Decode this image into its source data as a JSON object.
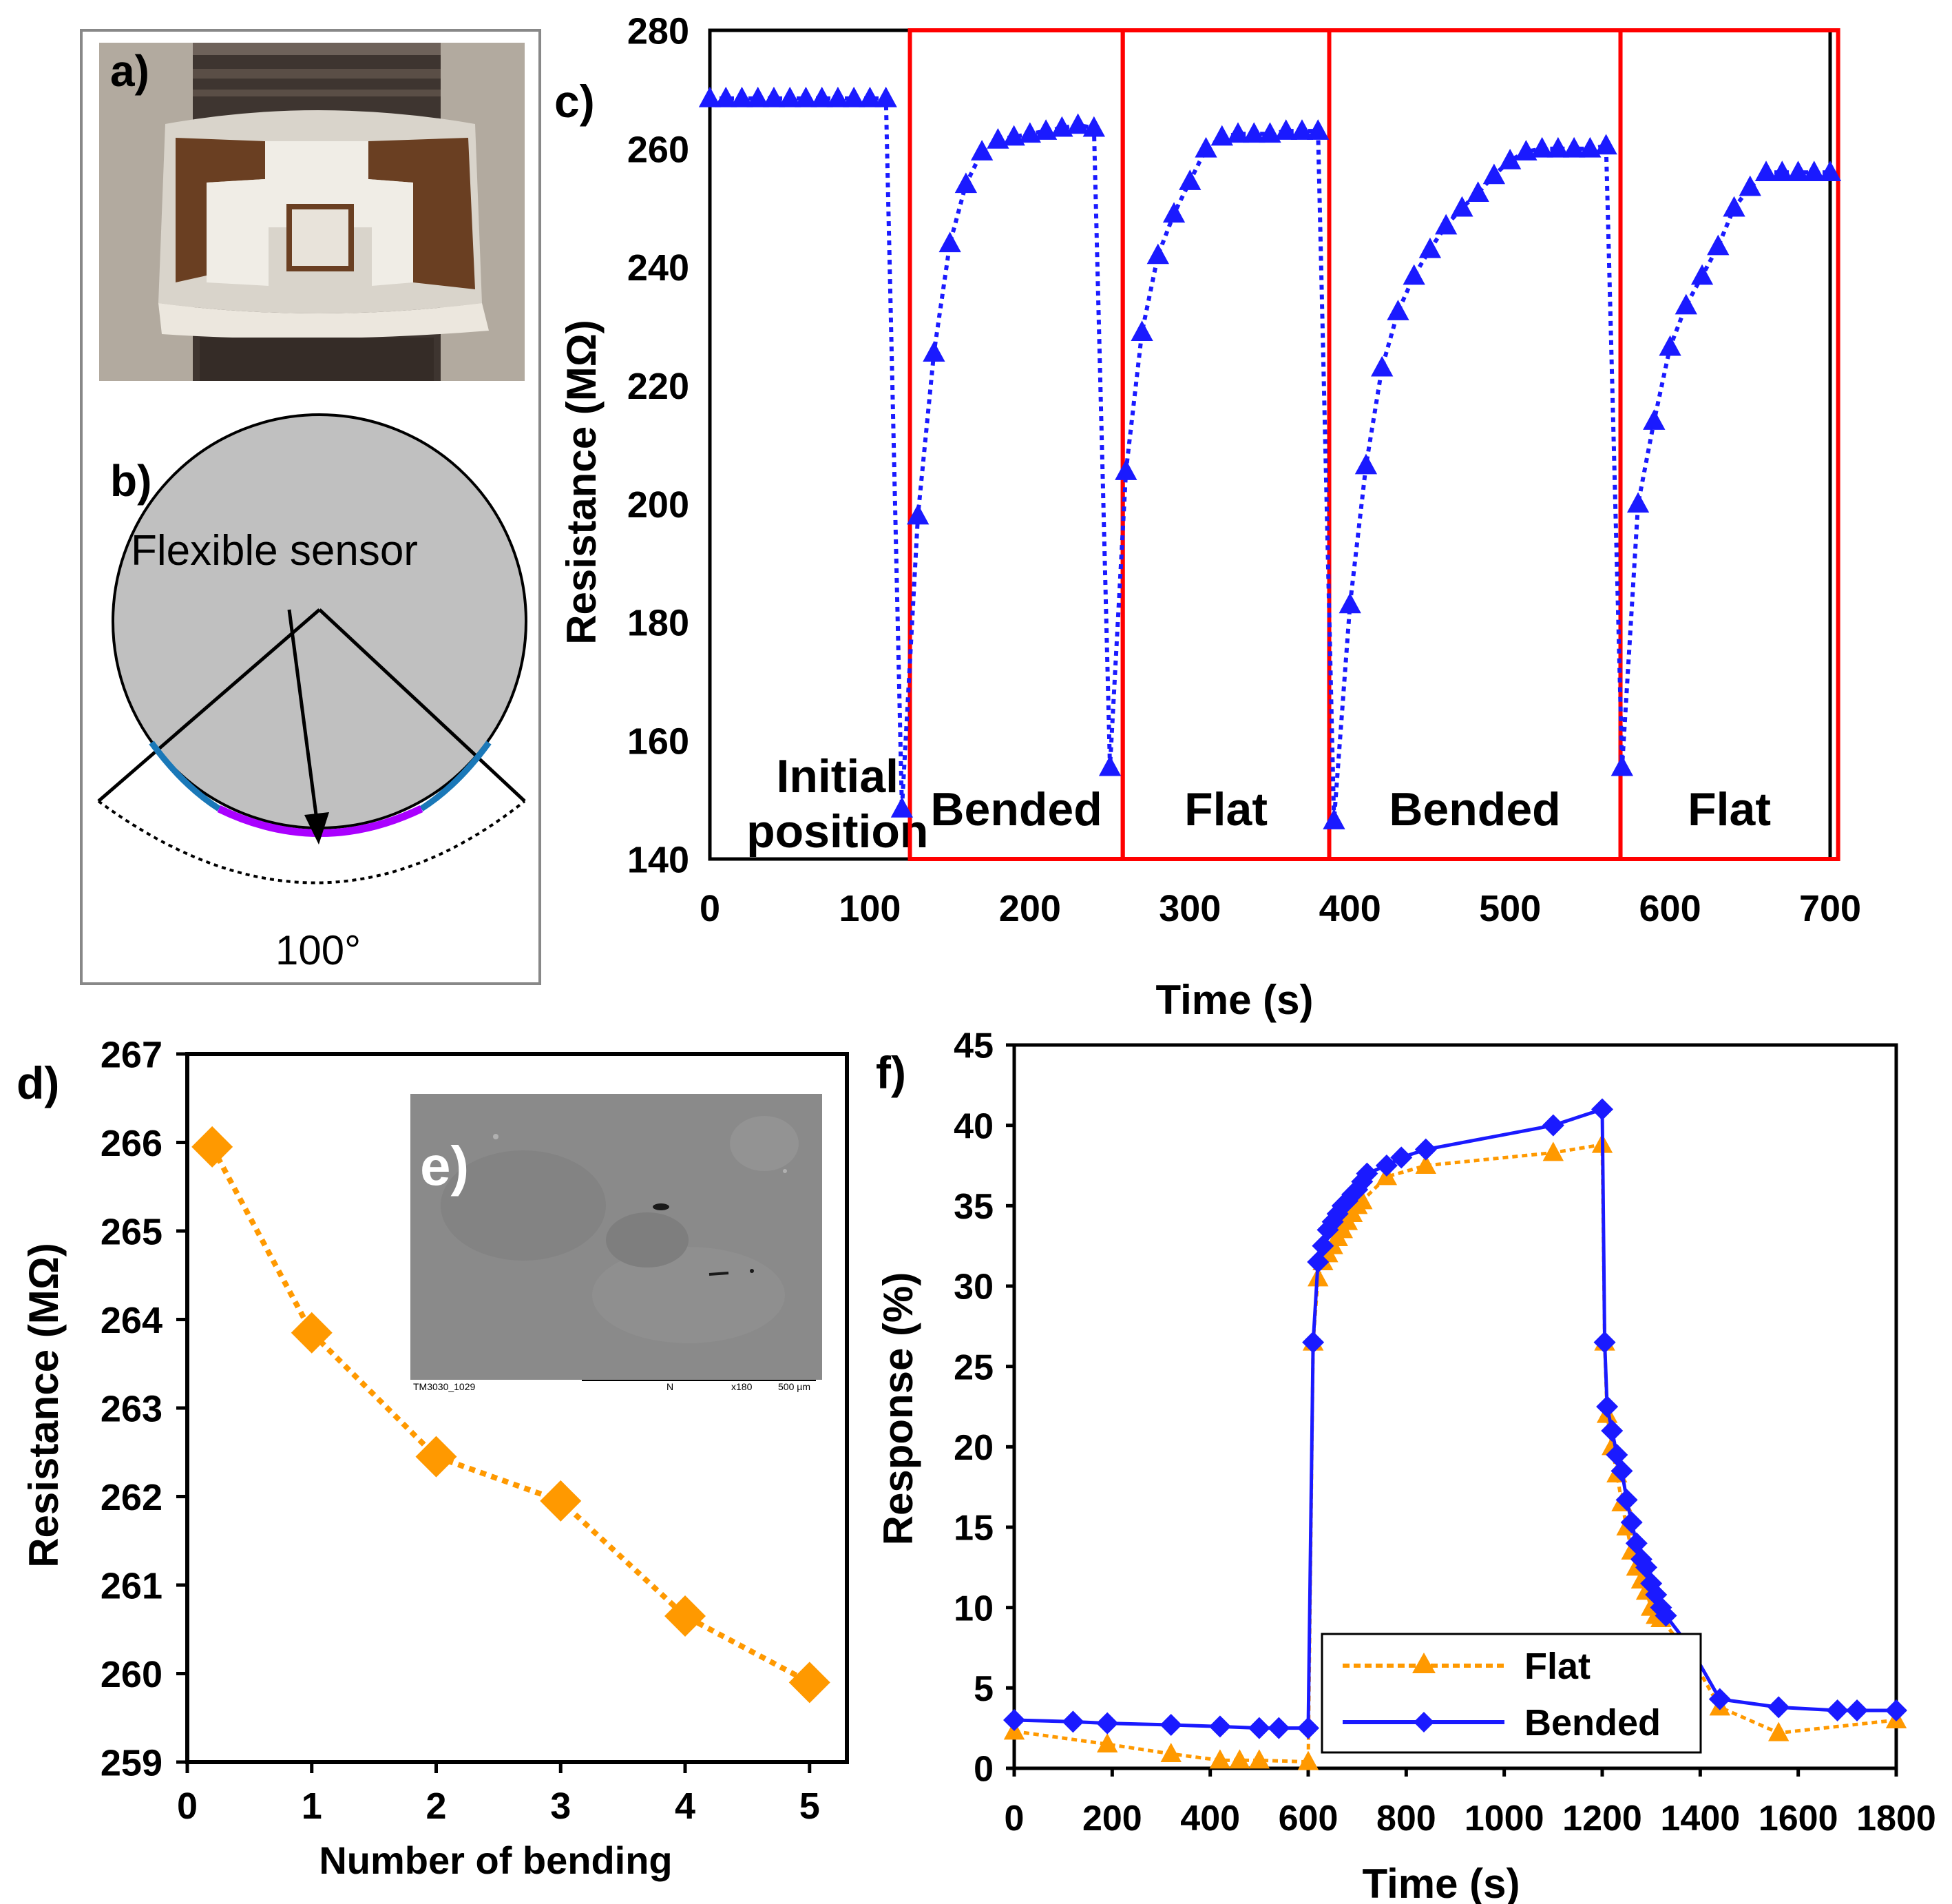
{
  "panels": {
    "a": {
      "label": "a)"
    },
    "b": {
      "label": "b)",
      "sensor_label": "Flexible sensor",
      "angle_label": "100°"
    },
    "e": {
      "label": "e)",
      "sem_caption_left": "TM3030_1029",
      "sem_caption_mid": "N",
      "sem_caption_mag": "x180",
      "sem_caption_scale": "500 µm"
    }
  },
  "colors": {
    "blue": "#1a1aff",
    "orange": "#ff9900",
    "red": "#ff0000",
    "purple": "#aa00ff",
    "teal": "#1a78b8",
    "gray": "#c0c0c0"
  },
  "chart_data": [
    {
      "id": "c",
      "panel_label": "c)",
      "type": "line",
      "xlabel": "Time (s)",
      "ylabel": "Resistance (MΩ)",
      "xlim": [
        0,
        700
      ],
      "ylim": [
        140,
        280
      ],
      "xticks": [
        0,
        100,
        200,
        300,
        400,
        500,
        600,
        700
      ],
      "yticks": [
        140,
        160,
        180,
        200,
        220,
        240,
        260,
        280
      ],
      "regions": [
        {
          "x0": 0,
          "x1": 125,
          "label_lines": [
            "Initial",
            "position"
          ],
          "boxed": false
        },
        {
          "x0": 125,
          "x1": 258,
          "label_lines": [
            "Bended"
          ],
          "boxed": true
        },
        {
          "x0": 258,
          "x1": 387,
          "label_lines": [
            "Flat"
          ],
          "boxed": true
        },
        {
          "x0": 387,
          "x1": 569,
          "label_lines": [
            "Bended"
          ],
          "boxed": true
        },
        {
          "x0": 569,
          "x1": 705,
          "label_lines": [
            "Flat"
          ],
          "boxed": true
        }
      ],
      "series": [
        {
          "name": "Resistance",
          "color": "#1a1aff",
          "marker": "triangle",
          "x": [
            0,
            10,
            20,
            30,
            40,
            50,
            60,
            70,
            80,
            90,
            100,
            110,
            120,
            130,
            140,
            150,
            160,
            170,
            180,
            190,
            200,
            210,
            220,
            230,
            240,
            250,
            260,
            270,
            280,
            290,
            300,
            310,
            320,
            330,
            340,
            350,
            360,
            370,
            380,
            390,
            400,
            410,
            420,
            430,
            440,
            450,
            460,
            470,
            480,
            490,
            500,
            510,
            520,
            530,
            540,
            550,
            560,
            570,
            580,
            590,
            600,
            610,
            620,
            630,
            640,
            650,
            660,
            670,
            680,
            690,
            700
          ],
          "y": [
            268.5,
            268.5,
            268.5,
            268.5,
            268.5,
            268.5,
            268.5,
            268.5,
            268.5,
            268.5,
            268.5,
            268.5,
            148.5,
            198,
            225.5,
            244,
            254,
            259.5,
            261.5,
            262,
            262.5,
            263,
            263.5,
            264,
            263.5,
            155.5,
            205.5,
            229,
            242,
            249,
            254.5,
            260,
            262,
            262.5,
            262.5,
            262.5,
            263,
            263,
            263,
            146.5,
            183,
            206.5,
            223,
            232.5,
            238.5,
            243,
            247,
            250,
            252.5,
            255.5,
            258,
            259.5,
            260,
            260,
            260,
            260,
            260.5,
            155.5,
            200,
            214,
            226.5,
            233.5,
            238.5,
            243.5,
            250,
            253.5,
            256,
            256,
            256,
            256,
            256
          ]
        }
      ]
    },
    {
      "id": "d",
      "panel_label": "d)",
      "type": "line",
      "xlabel": "Number of bending",
      "ylabel": "Resistance (MΩ)",
      "xlim": [
        0,
        5.3
      ],
      "ylim": [
        259,
        267
      ],
      "xticks": [
        0,
        1,
        2,
        3,
        4,
        5
      ],
      "yticks": [
        259,
        260,
        261,
        262,
        263,
        264,
        265,
        266,
        267
      ],
      "series": [
        {
          "name": "Resistance",
          "color": "#ff9900",
          "marker": "diamond",
          "x": [
            0.2,
            1,
            2,
            3,
            4,
            5
          ],
          "y": [
            265.95,
            263.85,
            262.45,
            261.95,
            260.65,
            259.9
          ]
        }
      ]
    },
    {
      "id": "f",
      "panel_label": "f)",
      "type": "line",
      "xlabel": "Time (s)",
      "ylabel": "Response (%)",
      "xlim": [
        0,
        1800
      ],
      "ylim": [
        0,
        45
      ],
      "xticks": [
        0,
        200,
        400,
        600,
        800,
        1000,
        1200,
        1400,
        1600,
        1800
      ],
      "yticks": [
        0,
        5,
        10,
        15,
        20,
        25,
        30,
        35,
        40,
        45
      ],
      "legend_position": "bottom-center",
      "series": [
        {
          "name": "Flat",
          "color": "#ff9900",
          "marker": "triangle",
          "dash": true,
          "x": [
            0,
            190,
            320,
            420,
            460,
            500,
            600,
            610,
            620,
            630,
            640,
            650,
            660,
            670,
            680,
            690,
            700,
            710,
            760,
            840,
            1100,
            1200,
            1205,
            1210,
            1220,
            1230,
            1240,
            1250,
            1260,
            1270,
            1280,
            1290,
            1300,
            1310,
            1320,
            1380,
            1440,
            1560,
            1800
          ],
          "y": [
            2.3,
            1.5,
            0.9,
            0.5,
            0.5,
            0.5,
            0.4,
            26.5,
            30.5,
            31.5,
            32,
            32.5,
            33,
            33.5,
            34,
            34.5,
            35,
            35.3,
            36.8,
            37.5,
            38.3,
            38.8,
            26.5,
            22,
            20,
            18.3,
            16.5,
            15,
            13.5,
            12.5,
            11.7,
            11,
            10,
            9.5,
            9.3,
            7,
            3.8,
            2.2,
            3
          ]
        },
        {
          "name": "Bended",
          "color": "#1a1aff",
          "marker": "diamond",
          "dash": false,
          "x": [
            0,
            120,
            190,
            320,
            420,
            500,
            540,
            600,
            610,
            620,
            630,
            640,
            650,
            660,
            670,
            680,
            690,
            700,
            710,
            720,
            760,
            790,
            840,
            1100,
            1200,
            1205,
            1210,
            1220,
            1230,
            1240,
            1250,
            1260,
            1270,
            1280,
            1290,
            1300,
            1310,
            1320,
            1330,
            1380,
            1440,
            1560,
            1680,
            1720,
            1800
          ],
          "y": [
            3,
            2.9,
            2.8,
            2.7,
            2.6,
            2.5,
            2.5,
            2.5,
            26.5,
            31.5,
            32.5,
            33.5,
            34,
            34.5,
            35,
            35.3,
            35.7,
            36,
            36.5,
            37,
            37.5,
            38,
            38.5,
            40,
            41,
            26.5,
            22.5,
            21,
            19.5,
            18.5,
            16.7,
            15.3,
            14,
            13,
            12.5,
            11.5,
            10.8,
            10,
            9.5,
            7.5,
            4.3,
            3.8,
            3.6,
            3.6,
            3.6
          ]
        }
      ]
    }
  ]
}
